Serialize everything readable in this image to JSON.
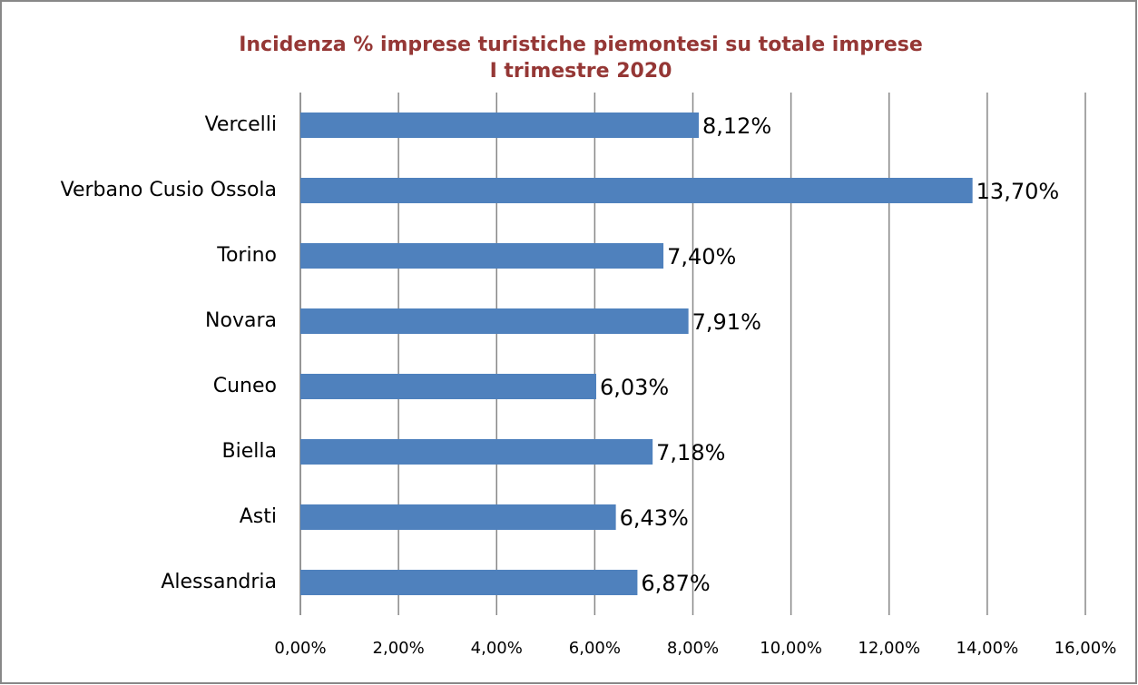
{
  "chart_data": {
    "type": "bar",
    "orientation": "horizontal",
    "title": "Incidenza % imprese turistiche piemontesi su totale imprese",
    "subtitle": "I trimestre 2020",
    "categories": [
      "Vercelli",
      "Verbano Cusio Ossola",
      "Torino",
      "Novara",
      "Cuneo",
      "Biella",
      "Asti",
      "Alessandria"
    ],
    "values": [
      8.12,
      13.7,
      7.4,
      7.91,
      6.03,
      7.18,
      6.43,
      6.87
    ],
    "value_labels": [
      "8,12%",
      "13,70%",
      "7,40%",
      "7,91%",
      "6,03%",
      "7,18%",
      "6,43%",
      "6,87%"
    ],
    "color": "#4f81bd",
    "xlim": [
      0,
      16
    ],
    "xticks": [
      {
        "value": 0,
        "label": "0,00%"
      },
      {
        "value": 2,
        "label": "2,00%"
      },
      {
        "value": 4,
        "label": "4,00%"
      },
      {
        "value": 6,
        "label": "6,00%"
      },
      {
        "value": 8,
        "label": "8,00%"
      },
      {
        "value": 10,
        "label": "10,00%"
      },
      {
        "value": 12,
        "label": "12,00%"
      },
      {
        "value": 14,
        "label": "14,00%"
      },
      {
        "value": 16,
        "label": "16,00%"
      }
    ],
    "grid": true
  }
}
